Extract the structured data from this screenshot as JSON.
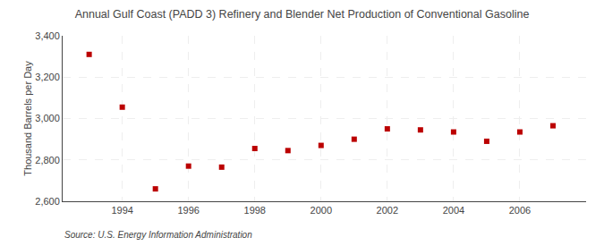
{
  "chart_data": {
    "type": "scatter",
    "title": "Annual Gulf Coast (PADD 3) Refinery and Blender Net Production of Conventional Gasoline",
    "ylabel": "Thousand Barrels per Day",
    "annotations": [
      "Source: U.S. Energy Information Administration"
    ],
    "x": [
      1993,
      1994,
      1995,
      1996,
      1997,
      1998,
      1999,
      2000,
      2001,
      2002,
      2003,
      2004,
      2005,
      2006,
      2007
    ],
    "values": [
      3310,
      3055,
      2660,
      2770,
      2765,
      2855,
      2845,
      2870,
      2900,
      2950,
      2945,
      2935,
      2890,
      2935,
      2965
    ],
    "color": "#bb0000",
    "marker": "square",
    "xlim": [
      1992.2,
      2008.0
    ],
    "xticks": [
      1994,
      1996,
      1998,
      2000,
      2002,
      2004,
      2006
    ],
    "ylim": [
      2600,
      3400
    ],
    "yticks": [
      {
        "value": 2600,
        "label": "2,600"
      },
      {
        "value": 2800,
        "label": "2,800"
      },
      {
        "value": 3000,
        "label": "3,000"
      },
      {
        "value": 3200,
        "label": "3,200"
      },
      {
        "value": 3400,
        "label": "3,400"
      }
    ],
    "grid": true
  }
}
